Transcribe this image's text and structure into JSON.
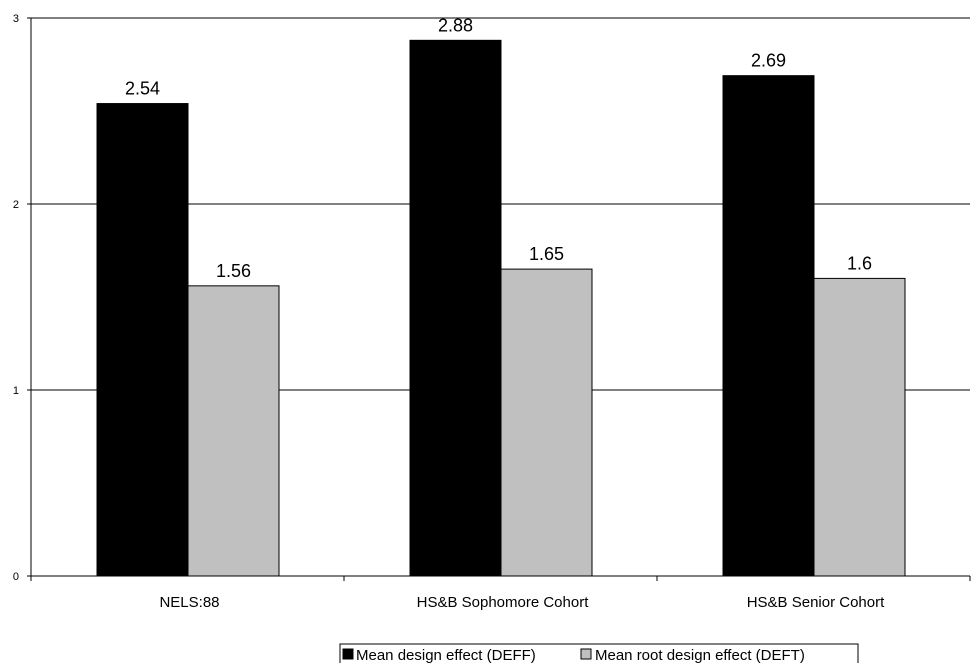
{
  "chart_data": {
    "type": "bar",
    "categories": [
      "NELS:88",
      "HS&B Sophomore Cohort",
      "HS&B Senior Cohort"
    ],
    "series": [
      {
        "name": "Mean design effect (DEFF)",
        "values": [
          2.54,
          2.88,
          2.69
        ],
        "color": "#000000",
        "labels": [
          "2.54",
          "2.88",
          "2.69"
        ]
      },
      {
        "name": "Mean root design effect (DEFT)",
        "values": [
          1.56,
          1.65,
          1.6
        ],
        "color": "#c0c0c0",
        "labels": [
          "1.56",
          "1.65",
          "1.6"
        ]
      }
    ],
    "yticks": [
      "0",
      "1",
      "2",
      "3"
    ],
    "ylim": [
      0,
      3
    ],
    "grid": true,
    "legend_position": "bottom"
  }
}
